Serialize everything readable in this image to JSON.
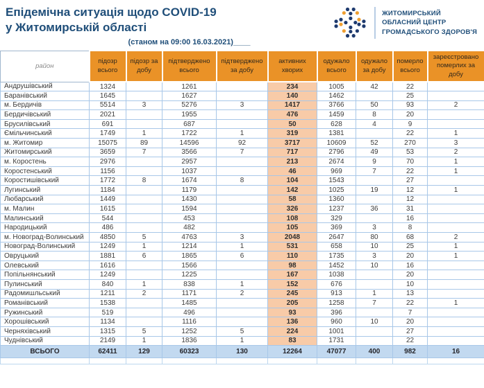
{
  "header": {
    "title_line1": "Епідемічна ситуація щодо COVID-19",
    "title_line2": "у Житомирській області",
    "date_note": "(станом на 09:00 16.03.2021)____",
    "logo": {
      "org_line1": "ЖИТОМИРСЬКИЙ",
      "org_line2": "ОБЛАСНИЙ ЦЕНТР",
      "org_line3": "ГРОМАДСЬКОГО ЗДОРОВ'Я"
    }
  },
  "colors": {
    "title_blue": "#1F4E79",
    "header_orange": "#EA9227",
    "active_cell_peach": "#F8CBA8",
    "total_row_blue": "#C2D9F0",
    "total_active_blue": "#7D9BD1",
    "grid_blue": "#A8C7E8",
    "logo_dot_blue": "#1E3A6E",
    "logo_dot_orange": "#F0A032"
  },
  "table": {
    "columns": [
      "район",
      "підозр всього",
      "підозр за добу",
      "підтверджено всього",
      "підтверджено за добу",
      "активних хворих",
      "одужало всього",
      "одужало за добу",
      "померло всього",
      "зареєстровано померлих за добу"
    ],
    "rows": [
      [
        "Андрушівський",
        "1324",
        "",
        "1261",
        "",
        "234",
        "1005",
        "42",
        "22",
        ""
      ],
      [
        "Баранівський",
        "1645",
        "",
        "1627",
        "",
        "140",
        "1462",
        "",
        "25",
        ""
      ],
      [
        "м. Бердичів",
        "5514",
        "3",
        "5276",
        "3",
        "1417",
        "3766",
        "50",
        "93",
        "2"
      ],
      [
        "Бердичівський",
        "2021",
        "",
        "1955",
        "",
        "476",
        "1459",
        "8",
        "20",
        ""
      ],
      [
        "Брусилівський",
        "691",
        "",
        "687",
        "",
        "50",
        "628",
        "4",
        "9",
        ""
      ],
      [
        "Ємільчинський",
        "1749",
        "1",
        "1722",
        "1",
        "319",
        "1381",
        "",
        "22",
        "1"
      ],
      [
        "м. Житомир",
        "15075",
        "89",
        "14596",
        "92",
        "3717",
        "10609",
        "52",
        "270",
        "3"
      ],
      [
        "Житомирський",
        "3659",
        "7",
        "3566",
        "7",
        "717",
        "2796",
        "49",
        "53",
        "2"
      ],
      [
        "м. Коростень",
        "2976",
        "",
        "2957",
        "",
        "213",
        "2674",
        "9",
        "70",
        "1"
      ],
      [
        "Коростенський",
        "1156",
        "",
        "1037",
        "",
        "46",
        "969",
        "7",
        "22",
        "1"
      ],
      [
        "Коростишівський",
        "1772",
        "8",
        "1674",
        "8",
        "104",
        "1543",
        "",
        "27",
        ""
      ],
      [
        "Лугинський",
        "1184",
        "",
        "1179",
        "",
        "142",
        "1025",
        "19",
        "12",
        "1"
      ],
      [
        "Любарський",
        "1449",
        "",
        "1430",
        "",
        "58",
        "1360",
        "",
        "12",
        ""
      ],
      [
        "м. Малин",
        "1615",
        "",
        "1594",
        "",
        "326",
        "1237",
        "36",
        "31",
        ""
      ],
      [
        "Малинський",
        "544",
        "",
        "453",
        "",
        "108",
        "329",
        "",
        "16",
        ""
      ],
      [
        "Народицький",
        "486",
        "",
        "482",
        "",
        "105",
        "369",
        "3",
        "8",
        ""
      ],
      [
        "м. Новоград-Волинський",
        "4850",
        "5",
        "4763",
        "3",
        "2048",
        "2647",
        "80",
        "68",
        "2"
      ],
      [
        "Новоград-Волинський",
        "1249",
        "1",
        "1214",
        "1",
        "531",
        "658",
        "10",
        "25",
        "1"
      ],
      [
        "Овруцький",
        "1881",
        "6",
        "1865",
        "6",
        "110",
        "1735",
        "3",
        "20",
        "1"
      ],
      [
        "Олевський",
        "1616",
        "",
        "1566",
        "",
        "98",
        "1452",
        "10",
        "16",
        ""
      ],
      [
        "Попільнянський",
        "1249",
        "",
        "1225",
        "",
        "167",
        "1038",
        "",
        "20",
        ""
      ],
      [
        "Пулинський",
        "840",
        "1",
        "838",
        "1",
        "152",
        "676",
        "",
        "10",
        ""
      ],
      [
        "Радомишльський",
        "1211",
        "2",
        "1171",
        "2",
        "245",
        "913",
        "1",
        "13",
        ""
      ],
      [
        "Романівський",
        "1538",
        "",
        "1485",
        "",
        "205",
        "1258",
        "7",
        "22",
        "1"
      ],
      [
        "Ружинський",
        "519",
        "",
        "496",
        "",
        "93",
        "396",
        "",
        "7",
        ""
      ],
      [
        "Хорошівський",
        "1134",
        "",
        "1116",
        "",
        "136",
        "960",
        "10",
        "20",
        ""
      ],
      [
        "Черняхівський",
        "1315",
        "5",
        "1252",
        "5",
        "224",
        "1001",
        "",
        "27",
        ""
      ],
      [
        "Чуднівський",
        "2149",
        "1",
        "1836",
        "1",
        "83",
        "1731",
        "",
        "22",
        ""
      ]
    ],
    "total": [
      "ВСЬОГО",
      "62411",
      "129",
      "60323",
      "130",
      "12264",
      "47077",
      "400",
      "982",
      "16"
    ]
  }
}
